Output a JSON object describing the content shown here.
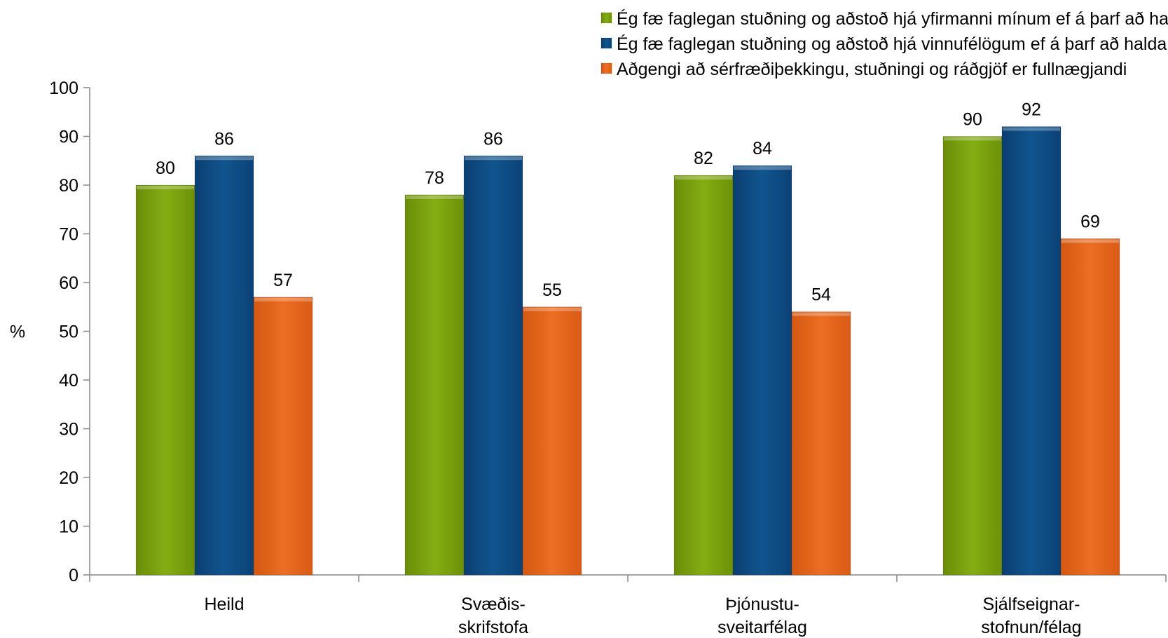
{
  "chart_data": {
    "type": "bar",
    "categories": [
      [
        "Heild"
      ],
      [
        "Svæðis-",
        "skrifstofa"
      ],
      [
        "Þjónustu-",
        "sveitarfélag"
      ],
      [
        "Sjálfseignar-",
        "stofnun/félag"
      ]
    ],
    "series": [
      {
        "name": "Ég fæ faglegan stuðning og aðstoð hjá yfirmanni mínum ef á þarf að halda",
        "color": "#7BA10E",
        "values": [
          80,
          78,
          82,
          90
        ]
      },
      {
        "name": "Ég fæ faglegan stuðning og aðstoð hjá vinnufélögum ef á þarf að halda",
        "color": "#0D4E8A",
        "values": [
          86,
          86,
          84,
          92
        ]
      },
      {
        "name": "Aðgengi að sérfræðiþekkingu, stuðningi og ráðgjöf er fullnægjandi",
        "color": "#E5661C",
        "values": [
          57,
          55,
          54,
          69
        ]
      }
    ],
    "ylabel": "%",
    "xlabel": "",
    "ylim": [
      0,
      100
    ],
    "yticks": [
      0,
      10,
      20,
      30,
      40,
      50,
      60,
      70,
      80,
      90,
      100
    ],
    "grid": false,
    "legend_position": "top-right",
    "data_labels": true
  }
}
